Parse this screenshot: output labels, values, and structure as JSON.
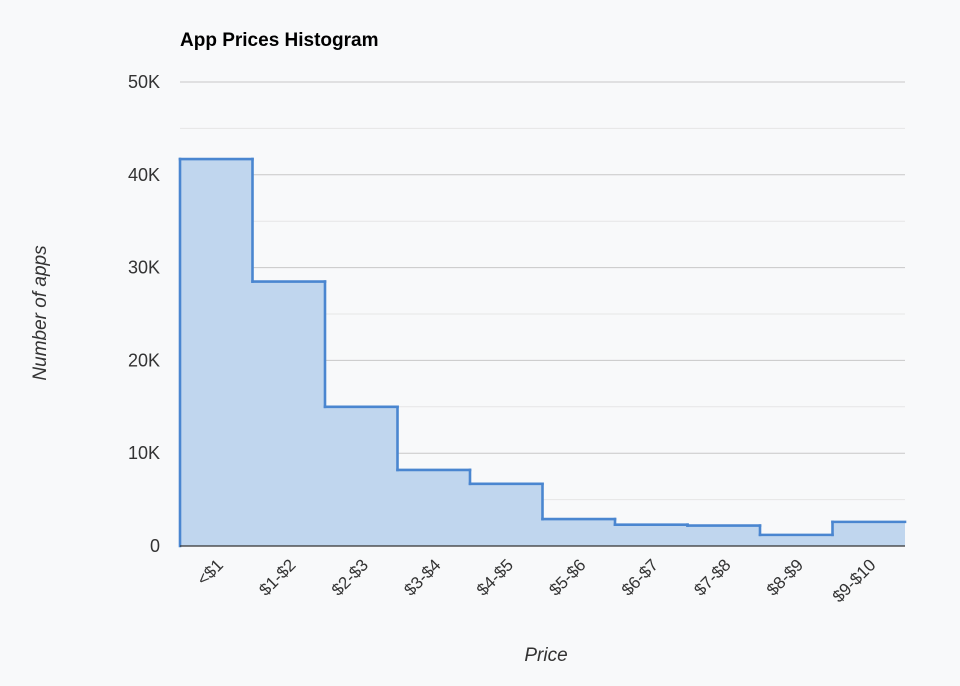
{
  "chart_data": {
    "type": "area",
    "title": "App Prices Histogram",
    "xlabel": "Price",
    "ylabel": "Number of apps",
    "categories": [
      "<$1",
      "$1-$2",
      "$2-$3",
      "$3-$4",
      "$4-$5",
      "$5-$6",
      "$6-$7",
      "$7-$8",
      "$8-$9",
      "$9-$10"
    ],
    "values": [
      41700,
      28500,
      15000,
      8200,
      6700,
      2900,
      2300,
      2200,
      1200,
      2600
    ],
    "ylim": [
      0,
      50000
    ],
    "yticks": [
      0,
      10000,
      20000,
      30000,
      40000,
      50000
    ],
    "ytick_labels": [
      "0",
      "10K",
      "20K",
      "30K",
      "40K",
      "50K"
    ],
    "grid": true,
    "line_color": "#4a86d0",
    "fill_color": "#c0d6ee"
  }
}
